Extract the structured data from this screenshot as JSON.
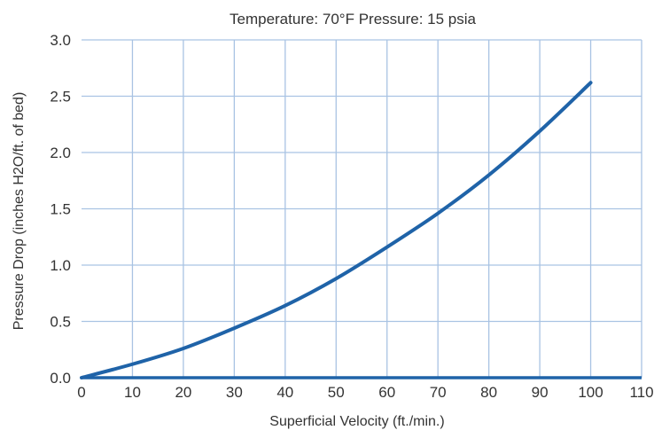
{
  "chart_data": {
    "type": "line",
    "title": "",
    "subtitle": "Temperature: 70°F  Pressure: 15 psia",
    "xlabel": "Superficial Velocity (ft./min.)",
    "ylabel": "Pressure Drop (inches H2O/ft. of bed)",
    "xlim": [
      0,
      110
    ],
    "ylim": [
      0,
      3.0
    ],
    "xticks": [
      "0",
      "10",
      "20",
      "30",
      "40",
      "50",
      "60",
      "70",
      "80",
      "90",
      "100",
      "110"
    ],
    "yticks": [
      "0.0",
      "0.5",
      "1.0",
      "1.5",
      "2.0",
      "2.5",
      "3.0"
    ],
    "grid": true,
    "line_color": "#1f63a8",
    "grid_color": "#a9c3e3",
    "series": [
      {
        "x": [
          0,
          10,
          20,
          30,
          40,
          50,
          60,
          70,
          80,
          90,
          100
        ],
        "y": [
          0.0,
          0.12,
          0.26,
          0.44,
          0.64,
          0.88,
          1.16,
          1.46,
          1.8,
          2.19,
          2.62
        ]
      }
    ]
  }
}
